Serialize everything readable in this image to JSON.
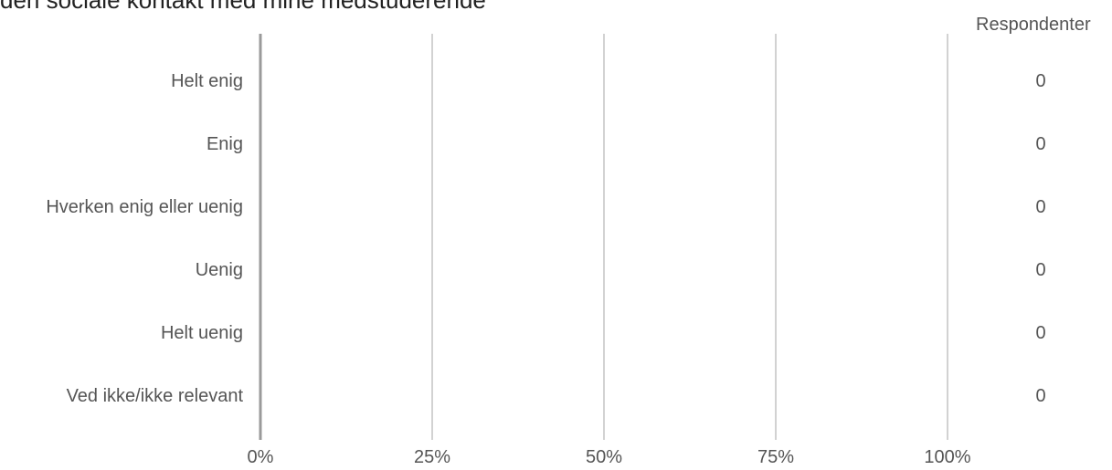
{
  "chart_data": {
    "type": "bar",
    "orientation": "horizontal",
    "title": "den sociale kontakt med mine medstuderende",
    "categories": [
      "Helt enig",
      "Enig",
      "Hverken enig eller uenig",
      "Uenig",
      "Helt uenig",
      "Ved ikke/ikke relevant"
    ],
    "values": [
      0,
      0,
      0,
      0,
      0,
      0
    ],
    "counts": [
      0,
      0,
      0,
      0,
      0,
      0
    ],
    "xlim": [
      0,
      100
    ],
    "x_ticks": [
      "0%",
      "25%",
      "50%",
      "75%",
      "100%"
    ],
    "counts_header": "Respondenter",
    "grid": true,
    "colors": {
      "gridline": "#b3b3b3",
      "axis": "#9a9a9a",
      "bar": "#4a7ebb"
    }
  }
}
